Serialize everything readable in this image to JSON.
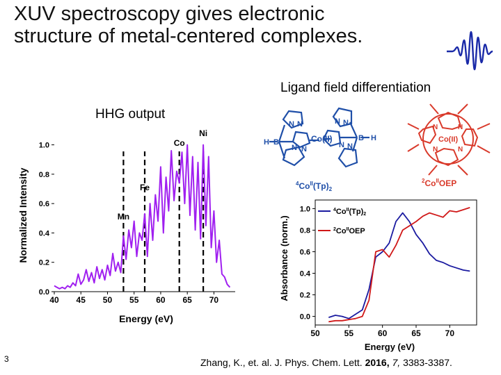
{
  "slide": {
    "title_line1": "XUV spectroscopy gives electronic",
    "title_line2": "structure of metal-centered complexes.",
    "ligand_field_label": "Ligand field differentiation",
    "hhg_label": "HHG output",
    "slide_number": "3",
    "citation": {
      "authors": "Zhang, K., et. al. J. Phys. Chem. Lett.",
      "year": "2016,",
      "volume": "7,",
      "pages": "3383-3387."
    },
    "molecule_left": {
      "label": "4CoII(Tp)2",
      "label_main": "Co",
      "label_pre": "4",
      "label_sup": "II",
      "label_post": "(Tp)",
      "label_sub": "2",
      "center": "Co(II)",
      "atoms": [
        "N",
        "N",
        "N",
        "N",
        "N",
        "N",
        "N",
        "N",
        "B",
        "B",
        "H",
        "H"
      ],
      "color": "#1f4fa8"
    },
    "molecule_right": {
      "label_pre": "2",
      "label_main": "Co",
      "label_sup": "II",
      "label_post": "OEP",
      "center": "Co(II)",
      "atoms": [
        "N",
        "N",
        "N",
        "N"
      ],
      "color": "#d93a2b"
    }
  },
  "chart_data": [
    {
      "type": "line",
      "title": "",
      "xlabel": "Energy (eV)",
      "ylabel": "Normalized Intensity",
      "xlim": [
        40,
        74
      ],
      "ylim": [
        0,
        1.05
      ],
      "xticks": [
        "40",
        "45",
        "50",
        "55",
        "60",
        "65",
        "70"
      ],
      "yticks": [
        "0.0",
        "0.2",
        "0.4",
        "0.6",
        "0.8",
        "1.0"
      ],
      "series": [
        {
          "color": "#a020f0",
          "x": [
            40.0,
            40.5,
            41.0,
            41.5,
            42.0,
            42.5,
            43.0,
            43.5,
            44.0,
            44.5,
            45.0,
            45.5,
            46.0,
            46.5,
            47.0,
            47.5,
            48.0,
            48.5,
            49.0,
            49.5,
            50.0,
            50.5,
            51.0,
            51.5,
            52.0,
            52.5,
            53.0,
            53.5,
            54.0,
            54.5,
            55.0,
            55.5,
            56.0,
            56.5,
            57.0,
            57.5,
            58.0,
            58.5,
            59.0,
            59.5,
            60.0,
            60.5,
            61.0,
            61.5,
            62.0,
            62.5,
            63.0,
            63.5,
            64.0,
            64.5,
            65.0,
            65.5,
            66.0,
            66.5,
            67.0,
            67.5,
            68.0,
            68.5,
            69.0,
            69.5,
            70.0,
            70.5,
            71.0,
            71.5,
            72.0,
            72.5,
            73.0
          ],
          "y": [
            0.04,
            0.03,
            0.02,
            0.03,
            0.02,
            0.04,
            0.03,
            0.06,
            0.04,
            0.12,
            0.05,
            0.08,
            0.15,
            0.07,
            0.13,
            0.06,
            0.17,
            0.09,
            0.15,
            0.08,
            0.18,
            0.11,
            0.26,
            0.14,
            0.2,
            0.13,
            0.38,
            0.22,
            0.42,
            0.3,
            0.48,
            0.24,
            0.4,
            0.35,
            0.53,
            0.24,
            0.6,
            0.35,
            0.66,
            0.48,
            0.85,
            0.4,
            0.78,
            0.55,
            0.96,
            0.62,
            0.82,
            0.74,
            0.95,
            0.6,
            1.0,
            0.52,
            0.92,
            0.42,
            0.88,
            0.36,
            1.0,
            0.45,
            0.92,
            0.3,
            0.55,
            0.2,
            0.35,
            0.12,
            0.1,
            0.05,
            0.03
          ]
        }
      ],
      "annotations": [
        {
          "text": "Mn",
          "x": 53.0
        },
        {
          "text": "Fe",
          "x": 57.0
        },
        {
          "text": "Co",
          "x": 63.5
        },
        {
          "text": "Ni",
          "x": 68.0
        }
      ]
    },
    {
      "type": "line",
      "title": "",
      "xlabel": "Energy (eV)",
      "ylabel": "Absorbance (norm.)",
      "xlim": [
        50,
        74
      ],
      "ylim": [
        -0.08,
        1.08
      ],
      "xticks": [
        "50",
        "55",
        "60",
        "65",
        "70"
      ],
      "yticks": [
        "0.0",
        "0.2",
        "0.4",
        "0.6",
        "0.8",
        "1.0"
      ],
      "legend_position": "top-left",
      "legend_labels": [
        "4CoII(Tp)2",
        "2CoIIOEP"
      ],
      "series": [
        {
          "label_pre": "4",
          "label_main": "Co",
          "label_sup": "II",
          "label_post": "(Tp)",
          "label_sub": "2",
          "color": "#1a1aa0",
          "x": [
            52,
            53,
            54,
            55,
            56,
            57,
            58,
            59,
            60,
            61,
            62,
            63,
            64,
            65,
            66,
            67,
            68,
            69,
            70,
            71,
            72,
            73
          ],
          "y": [
            -0.01,
            0.01,
            0.0,
            -0.02,
            0.02,
            0.06,
            0.25,
            0.55,
            0.6,
            0.68,
            0.88,
            0.96,
            0.88,
            0.76,
            0.68,
            0.58,
            0.52,
            0.5,
            0.47,
            0.45,
            0.43,
            0.42
          ]
        },
        {
          "label_pre": "2",
          "label_main": "Co",
          "label_sup": "II",
          "label_post": "OEP",
          "label_sub": "",
          "color": "#d01818",
          "x": [
            52,
            53,
            54,
            55,
            56,
            57,
            58,
            59,
            60,
            61,
            62,
            63,
            64,
            65,
            66,
            67,
            68,
            69,
            70,
            71,
            72,
            73
          ],
          "y": [
            -0.05,
            -0.04,
            -0.04,
            -0.03,
            -0.02,
            0.0,
            0.15,
            0.6,
            0.62,
            0.55,
            0.66,
            0.8,
            0.84,
            0.88,
            0.93,
            0.96,
            0.94,
            0.92,
            0.98,
            0.97,
            0.99,
            1.01
          ]
        }
      ]
    }
  ]
}
